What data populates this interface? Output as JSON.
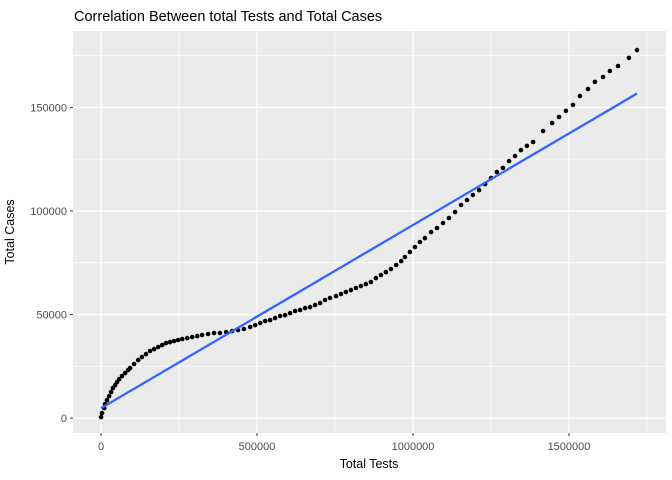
{
  "title": "Correlation Between total Tests and Total Cases",
  "chart_data": {
    "type": "scatter",
    "title": "Correlation Between total Tests and Total Cases",
    "xlabel": "Total Tests",
    "ylabel": "Total Cases",
    "x_ticks": [
      0,
      500000,
      1000000,
      1500000
    ],
    "x_tick_labels": [
      "0",
      "500000",
      "1000000",
      "1500000"
    ],
    "y_ticks": [
      0,
      50000,
      100000,
      150000
    ],
    "y_tick_labels": [
      "0",
      "50000",
      "100000",
      "150000"
    ],
    "x_minor_ticks": [
      250000,
      750000,
      1250000,
      1750000
    ],
    "y_minor_ticks": [
      25000,
      75000,
      125000,
      175000
    ],
    "xlim": [
      -90000,
      1811000
    ],
    "ylim": [
      -7200,
      186900
    ],
    "grid": true,
    "legend": "none",
    "panel_background": "#EBEBEB",
    "grid_color": "#FFFFFF",
    "point_color": "#000000",
    "tick_mark_color": "#333333",
    "axis_text_color": "#4D4D4D",
    "smooth_line": {
      "color": "#3366FF",
      "x": [
        0,
        1718000
      ],
      "y": [
        4800,
        156700
      ]
    },
    "points": [
      [
        0,
        500
      ],
      [
        3000,
        2400
      ],
      [
        10000,
        4800
      ],
      [
        13000,
        6800
      ],
      [
        19000,
        8700
      ],
      [
        26000,
        10600
      ],
      [
        32000,
        12600
      ],
      [
        38000,
        14500
      ],
      [
        45000,
        15900
      ],
      [
        51000,
        17400
      ],
      [
        58000,
        18800
      ],
      [
        67000,
        20300
      ],
      [
        77000,
        21700
      ],
      [
        87000,
        23200
      ],
      [
        93000,
        24200
      ],
      [
        106000,
        26100
      ],
      [
        119000,
        28000
      ],
      [
        131000,
        29500
      ],
      [
        144000,
        30900
      ],
      [
        157000,
        32400
      ],
      [
        170000,
        33300
      ],
      [
        183000,
        34300
      ],
      [
        196000,
        35300
      ],
      [
        208000,
        36200
      ],
      [
        221000,
        36700
      ],
      [
        234000,
        37200
      ],
      [
        247000,
        37700
      ],
      [
        260000,
        38200
      ],
      [
        276000,
        38600
      ],
      [
        292000,
        39100
      ],
      [
        308000,
        39600
      ],
      [
        324000,
        40100
      ],
      [
        343000,
        40600
      ],
      [
        362000,
        41100
      ],
      [
        381000,
        41100
      ],
      [
        401000,
        41500
      ],
      [
        420000,
        42000
      ],
      [
        439000,
        42500
      ],
      [
        458000,
        43000
      ],
      [
        478000,
        44000
      ],
      [
        494000,
        44900
      ],
      [
        510000,
        45900
      ],
      [
        526000,
        46900
      ],
      [
        542000,
        47300
      ],
      [
        558000,
        48300
      ],
      [
        574000,
        49300
      ],
      [
        590000,
        49700
      ],
      [
        606000,
        50700
      ],
      [
        622000,
        51700
      ],
      [
        638000,
        52200
      ],
      [
        654000,
        53100
      ],
      [
        670000,
        53600
      ],
      [
        686000,
        54600
      ],
      [
        702000,
        55500
      ],
      [
        718000,
        57000
      ],
      [
        734000,
        58000
      ],
      [
        753000,
        58900
      ],
      [
        769000,
        59900
      ],
      [
        785000,
        60900
      ],
      [
        801000,
        61800
      ],
      [
        817000,
        62800
      ],
      [
        833000,
        63800
      ],
      [
        849000,
        64700
      ],
      [
        865000,
        65700
      ],
      [
        881000,
        67600
      ],
      [
        897000,
        69100
      ],
      [
        913000,
        70500
      ],
      [
        929000,
        72000
      ],
      [
        946000,
        73900
      ],
      [
        962000,
        75800
      ],
      [
        974000,
        77800
      ],
      [
        990000,
        80200
      ],
      [
        1006000,
        82600
      ],
      [
        1022000,
        85000
      ],
      [
        1038000,
        86900
      ],
      [
        1058000,
        89800
      ],
      [
        1077000,
        91800
      ],
      [
        1096000,
        94200
      ],
      [
        1115000,
        96600
      ],
      [
        1135000,
        99500
      ],
      [
        1154000,
        102900
      ],
      [
        1173000,
        105300
      ],
      [
        1192000,
        107700
      ],
      [
        1212000,
        110100
      ],
      [
        1231000,
        113000
      ],
      [
        1250000,
        115900
      ],
      [
        1269000,
        118800
      ],
      [
        1288000,
        120800
      ],
      [
        1308000,
        124100
      ],
      [
        1327000,
        126500
      ],
      [
        1346000,
        129400
      ],
      [
        1365000,
        131400
      ],
      [
        1385000,
        133300
      ],
      [
        1417000,
        138600
      ],
      [
        1446000,
        142500
      ],
      [
        1468000,
        145400
      ],
      [
        1490000,
        148300
      ],
      [
        1513000,
        151200
      ],
      [
        1535000,
        155500
      ],
      [
        1561000,
        158900
      ],
      [
        1583000,
        162300
      ],
      [
        1609000,
        164700
      ],
      [
        1631000,
        167600
      ],
      [
        1657000,
        170000
      ],
      [
        1692000,
        173900
      ],
      [
        1718000,
        177700
      ]
    ]
  }
}
